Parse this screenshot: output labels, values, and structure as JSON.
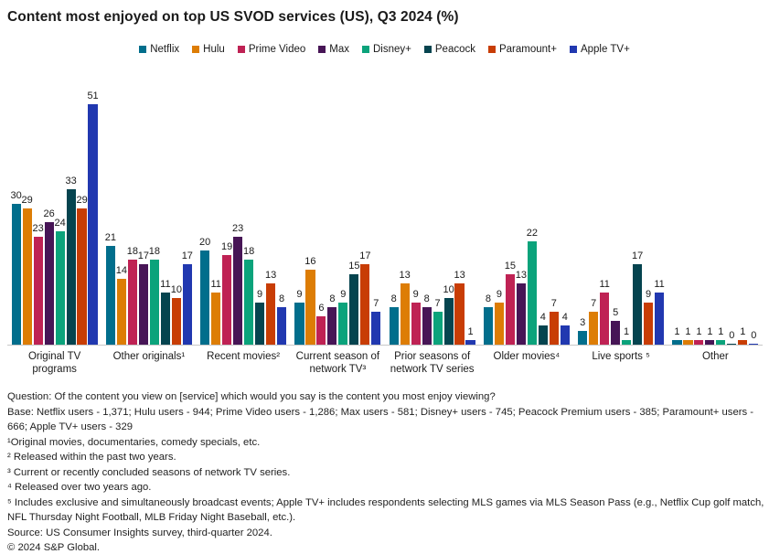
{
  "title": "Content most enjoyed on top US SVOD services (US), Q3 2024 (%)",
  "chart_data": {
    "type": "bar",
    "title": "Content most enjoyed on top US SVOD services (US), Q3 2024 (%)",
    "categories": [
      "Original TV programs",
      "Other originals¹",
      "Recent movies²",
      "Current season of network TV³",
      "Prior seasons of network TV series",
      "Older movies⁴",
      "Live sports ⁵",
      "Other"
    ],
    "series": [
      {
        "name": "Netflix",
        "color": "#016e8c",
        "values": [
          30,
          21,
          20,
          9,
          8,
          8,
          3,
          1
        ]
      },
      {
        "name": "Hulu",
        "color": "#dd7d05",
        "values": [
          29,
          14,
          11,
          16,
          13,
          9,
          7,
          1
        ]
      },
      {
        "name": "Prime Video",
        "color": "#bf2254",
        "values": [
          23,
          18,
          19,
          6,
          9,
          15,
          11,
          1
        ]
      },
      {
        "name": "Max",
        "color": "#471556",
        "values": [
          26,
          17,
          23,
          8,
          8,
          13,
          5,
          1
        ]
      },
      {
        "name": "Disney+",
        "color": "#0ba37b",
        "values": [
          24,
          18,
          18,
          9,
          7,
          22,
          1,
          1
        ]
      },
      {
        "name": "Peacock",
        "color": "#05444f",
        "values": [
          33,
          11,
          9,
          15,
          10,
          4,
          17,
          0
        ]
      },
      {
        "name": "Paramount+",
        "color": "#c83d05",
        "values": [
          29,
          10,
          13,
          17,
          13,
          7,
          9,
          1
        ]
      },
      {
        "name": "Apple TV+",
        "color": "#2138b0",
        "values": [
          51,
          17,
          8,
          7,
          1,
          4,
          11,
          0
        ]
      }
    ],
    "ylim": [
      0,
      55
    ],
    "grid": false,
    "value_labels": true,
    "legend_position": "top",
    "axis_line_color": "#c8c8c8"
  },
  "notes": [
    "Question: Of the content you view on [service] which would you say is the content you most enjoy viewing?",
    "Base: Netflix users - 1,371; Hulu users - 944; Prime Video users - 1,286; Max users - 581; Disney+ users - 745; Peacock Premium users - 385; Paramount+ users - 666; Apple TV+ users - 329",
    "¹Original movies, documentaries, comedy specials, etc.",
    "² Released within the past two years.",
    "³ Current or recently concluded seasons of network TV series.",
    "⁴ Released over two years ago.",
    "⁵ Includes exclusive and simultaneously broadcast events; Apple TV+ includes respondents selecting MLS games via MLS Season Pass (e.g., Netflix Cup golf match, NFL Thursday Night Football, MLB Friday Night Baseball, etc.).",
    "Source: US Consumer Insights survey, third-quarter 2024.",
    "© 2024 S&P Global."
  ]
}
